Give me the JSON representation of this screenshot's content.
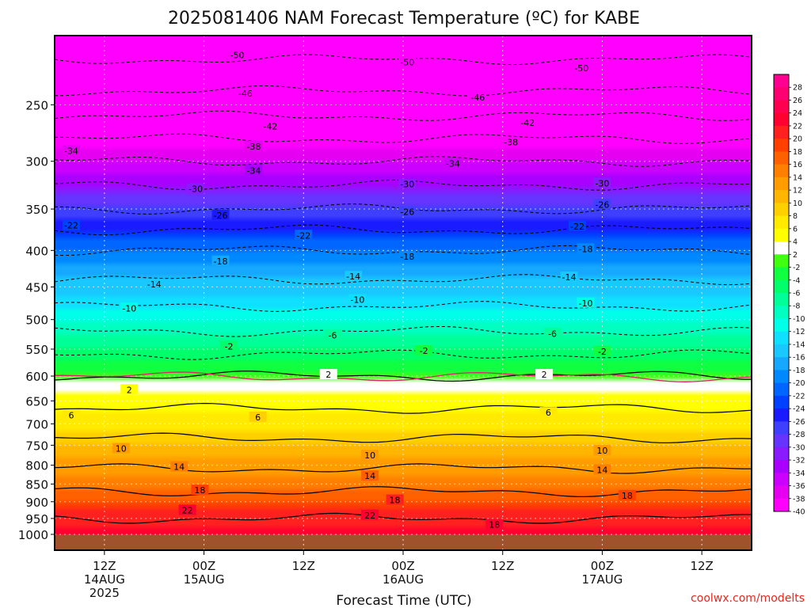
{
  "chart_data": {
    "type": "heatmap",
    "title": "2025081406 NAM Forecast Temperature (ºC) for KABE",
    "xlabel": "Forecast Time (UTC)",
    "credit": "coolwx.com/modelts",
    "x_ticks": [
      {
        "hour": 6,
        "label": "12Z",
        "sub1": "14AUG",
        "sub2": "2025"
      },
      {
        "hour": 18,
        "label": "00Z",
        "sub1": "15AUG",
        "sub2": ""
      },
      {
        "hour": 30,
        "label": "12Z",
        "sub1": "",
        "sub2": ""
      },
      {
        "hour": 42,
        "label": "00Z",
        "sub1": "16AUG",
        "sub2": ""
      },
      {
        "hour": 54,
        "label": "12Z",
        "sub1": "",
        "sub2": ""
      },
      {
        "hour": 66,
        "label": "00Z",
        "sub1": "17AUG",
        "sub2": ""
      },
      {
        "hour": 78,
        "label": "12Z",
        "sub1": "",
        "sub2": ""
      }
    ],
    "x_range_hours": [
      0,
      84
    ],
    "y_ticks": [
      250,
      300,
      350,
      400,
      450,
      500,
      550,
      600,
      650,
      700,
      750,
      800,
      850,
      900,
      950,
      1000
    ],
    "y_range_hpa": [
      200,
      1000
    ],
    "y_scale": "log (pressure)",
    "colorbar_labels": [
      "28",
      "26",
      "24",
      "22",
      "20",
      "18",
      "16",
      "14",
      "12",
      "10",
      "8",
      "6",
      "4",
      "2",
      "-2",
      "-4",
      "-6",
      "-8",
      "-10",
      "-12",
      "-14",
      "-16",
      "-18",
      "-20",
      "-22",
      "-24",
      "-26",
      "-28",
      "-30",
      "-32",
      "-34",
      "-36",
      "-38",
      "-40"
    ],
    "palette": [
      "#ff00ff",
      "#e600f2",
      "#cc00ff",
      "#a900ff",
      "#8a1aff",
      "#6633ff",
      "#3f3fff",
      "#1b1bff",
      "#0040ff",
      "#0066ff",
      "#0088ff",
      "#16a8ff",
      "#18c8ff",
      "#10e0ff",
      "#00ffe8",
      "#00ffc0",
      "#00ff99",
      "#00ff6a",
      "#10ff40",
      "#40ff10",
      "#ffffff",
      "#ffff00",
      "#ffea00",
      "#ffd000",
      "#ffb600",
      "#ff9c00",
      "#ff8000",
      "#ff6000",
      "#ff4000",
      "#ff2020",
      "#ff0030",
      "#ff0050",
      "#ff0070",
      "#ff0090"
    ],
    "contour_levels_dashed": [
      -50,
      -46,
      -42,
      -38,
      -34,
      -30,
      -26,
      -22,
      -18,
      -14,
      -10,
      -6,
      -2
    ],
    "contour_levels_solid": [
      2,
      6,
      10,
      14,
      18,
      22
    ],
    "profile": [
      {
        "p": 200,
        "t": -54
      },
      {
        "p": 250,
        "t": -44
      },
      {
        "p": 300,
        "t": -34
      },
      {
        "p": 350,
        "t": -26
      },
      {
        "p": 400,
        "t": -18
      },
      {
        "p": 450,
        "t": -13
      },
      {
        "p": 500,
        "t": -8
      },
      {
        "p": 550,
        "t": -3
      },
      {
        "p": 600,
        "t": 2
      },
      {
        "p": 650,
        "t": 5
      },
      {
        "p": 700,
        "t": 8
      },
      {
        "p": 750,
        "t": 11
      },
      {
        "p": 800,
        "t": 13.5
      },
      {
        "p": 850,
        "t": 16.5
      },
      {
        "p": 900,
        "t": 20
      },
      {
        "p": 950,
        "t": 22
      },
      {
        "p": 1000,
        "t": 23
      }
    ],
    "contour_labels": [
      {
        "v": "-50",
        "hour": 22,
        "p": 213
      },
      {
        "v": "-50",
        "hour": 42.5,
        "p": 218
      },
      {
        "v": "-50",
        "hour": 63.5,
        "p": 222
      },
      {
        "v": "-46",
        "hour": 23,
        "p": 241
      },
      {
        "v": "-46",
        "hour": 51,
        "p": 244
      },
      {
        "v": "-42",
        "hour": 26,
        "p": 268
      },
      {
        "v": "-42",
        "hour": 57,
        "p": 265
      },
      {
        "v": "-38",
        "hour": 24,
        "p": 286
      },
      {
        "v": "-38",
        "hour": 55,
        "p": 282
      },
      {
        "v": "-34",
        "hour": 2,
        "p": 290
      },
      {
        "v": "-34",
        "hour": 24,
        "p": 309
      },
      {
        "v": "-34",
        "hour": 48,
        "p": 302
      },
      {
        "v": "-30",
        "hour": 17,
        "p": 328
      },
      {
        "v": "-30",
        "hour": 42.5,
        "p": 323
      },
      {
        "v": "-30",
        "hour": 66,
        "p": 322
      },
      {
        "v": "-26",
        "hour": 20,
        "p": 357
      },
      {
        "v": "-26",
        "hour": 42.5,
        "p": 353
      },
      {
        "v": "-26",
        "hour": 66,
        "p": 345
      },
      {
        "v": "-22",
        "hour": 2,
        "p": 369
      },
      {
        "v": "-22",
        "hour": 30,
        "p": 381
      },
      {
        "v": "-22",
        "hour": 63,
        "p": 370
      },
      {
        "v": "-18",
        "hour": 20,
        "p": 414
      },
      {
        "v": "-18",
        "hour": 42.5,
        "p": 408
      },
      {
        "v": "-18",
        "hour": 64,
        "p": 398
      },
      {
        "v": "-14",
        "hour": 12,
        "p": 446
      },
      {
        "v": "-14",
        "hour": 36,
        "p": 435
      },
      {
        "v": "-14",
        "hour": 62,
        "p": 436
      },
      {
        "v": "-10",
        "hour": 9,
        "p": 482
      },
      {
        "v": "-10",
        "hour": 36.5,
        "p": 469
      },
      {
        "v": "-10",
        "hour": 64,
        "p": 474
      },
      {
        "v": "-6",
        "hour": 33.5,
        "p": 526
      },
      {
        "v": "-6",
        "hour": 60,
        "p": 523
      },
      {
        "v": "-2",
        "hour": 21,
        "p": 545
      },
      {
        "v": "-2",
        "hour": 44.5,
        "p": 553
      },
      {
        "v": "-2",
        "hour": 66,
        "p": 554
      },
      {
        "v": "2",
        "hour": 9,
        "p": 627
      },
      {
        "v": "2",
        "hour": 33,
        "p": 597
      },
      {
        "v": "2",
        "hour": 59,
        "p": 597
      },
      {
        "v": "6",
        "hour": 2,
        "p": 681
      },
      {
        "v": "6",
        "hour": 24.5,
        "p": 685
      },
      {
        "v": "6",
        "hour": 59.5,
        "p": 675
      },
      {
        "v": "10",
        "hour": 8,
        "p": 758
      },
      {
        "v": "10",
        "hour": 38,
        "p": 775
      },
      {
        "v": "10",
        "hour": 66,
        "p": 763
      },
      {
        "v": "14",
        "hour": 15,
        "p": 804
      },
      {
        "v": "14",
        "hour": 38,
        "p": 828
      },
      {
        "v": "14",
        "hour": 66,
        "p": 812
      },
      {
        "v": "18",
        "hour": 17.5,
        "p": 867
      },
      {
        "v": "18",
        "hour": 41,
        "p": 895
      },
      {
        "v": "18",
        "hour": 69,
        "p": 882
      },
      {
        "v": "22",
        "hour": 16,
        "p": 925
      },
      {
        "v": "22",
        "hour": 38,
        "p": 940
      },
      {
        "v": "18",
        "hour": 53,
        "p": 969
      }
    ]
  }
}
